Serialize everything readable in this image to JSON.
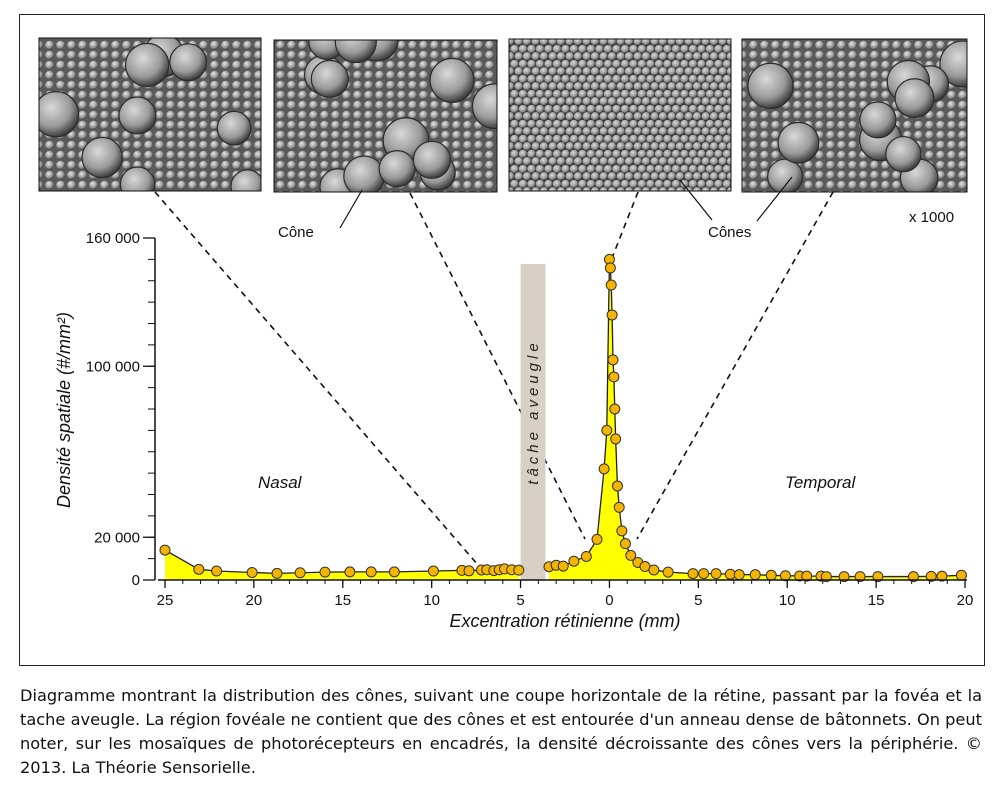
{
  "chart_data": {
    "type": "area",
    "title": "",
    "xlabel": "Excentration rétinienne (mm)",
    "ylabel": "Densité spatiale (#/mm²)",
    "x_tick_labels": [
      "25",
      "20",
      "15",
      "10",
      "5",
      "0",
      "5",
      "10",
      "15",
      "20"
    ],
    "x_ticks": [
      -25,
      -20,
      -15,
      -10,
      -5,
      0,
      5,
      10,
      15,
      20
    ],
    "y_tick_labels": [
      "160 000",
      "100 000",
      "20 000",
      "0"
    ],
    "y_ticks": [
      160000,
      100000,
      20000,
      0
    ],
    "xlim": [
      -25,
      20
    ],
    "ylim": [
      0,
      160000
    ],
    "fill_color": "#ffff00",
    "marker_color": "#f5b400",
    "blind_spot": {
      "label": "tâche aveugle",
      "x_range": [
        -5,
        -3.6
      ],
      "color": "#d8d0c4"
    },
    "region_labels": {
      "left": "Nasal",
      "right": "Temporal"
    },
    "annotations": {
      "cone": "Cône",
      "cones": "Cônes",
      "magnification": "x 1000"
    },
    "series": [
      {
        "segment": "nasal",
        "x": [
          -25,
          -23.1,
          -22.1,
          -20.1,
          -18.7,
          -17.4,
          -16,
          -14.6,
          -13.4,
          -12.1,
          -9.9,
          -8.3,
          -7.9,
          -7.2,
          -6.9,
          -6.5,
          -6.2,
          -5.9,
          -5.5,
          -5.1
        ],
        "y": [
          14000,
          5000,
          4200,
          3500,
          3100,
          3400,
          3700,
          3800,
          3800,
          3800,
          4200,
          4500,
          4300,
          4700,
          4800,
          4400,
          4800,
          5200,
          4800,
          4600
        ]
      },
      {
        "segment": "temporal",
        "x": [
          -3.4,
          -3,
          -2.6,
          -2,
          -1.3,
          -0.7,
          -0.3,
          -0.15,
          0,
          0.05,
          0.1,
          0.15,
          0.2,
          0.25,
          0.3,
          0.35,
          0.45,
          0.55,
          0.7,
          0.9,
          1.2,
          1.6,
          2,
          2.5,
          3.3,
          4.7,
          5.3,
          6,
          6.8,
          7.3,
          8.2,
          9.1,
          9.9,
          10.7,
          11.1,
          11.9,
          12.2,
          13.2,
          14.1,
          15.1,
          17.1,
          18.1,
          18.7,
          19.8
        ],
        "y": [
          6200,
          6900,
          6500,
          8800,
          11000,
          19000,
          52000,
          70000,
          150000,
          146000,
          138000,
          124000,
          103000,
          95000,
          80000,
          66000,
          44000,
          34000,
          23000,
          17000,
          11500,
          8200,
          6300,
          4700,
          3700,
          3000,
          3000,
          3000,
          2700,
          2500,
          2500,
          2200,
          2000,
          1900,
          1800,
          1800,
          1600,
          1600,
          1600,
          1600,
          1600,
          1700,
          1800,
          2200
        ]
      }
    ]
  },
  "caption": "Diagramme montrant la distribution des cônes, suivant une coupe horizontale de la rétine, passant par la fovéa et la tache aveugle. La région fovéale ne contient que des cônes et est entourée d'un anneau dense de bâtonnets. On peut noter, sur les mosaïques de photorécepteurs en encadrés, la densité décroissante des cônes vers la périphérie. © 2013. La Théorie Sensorielle."
}
